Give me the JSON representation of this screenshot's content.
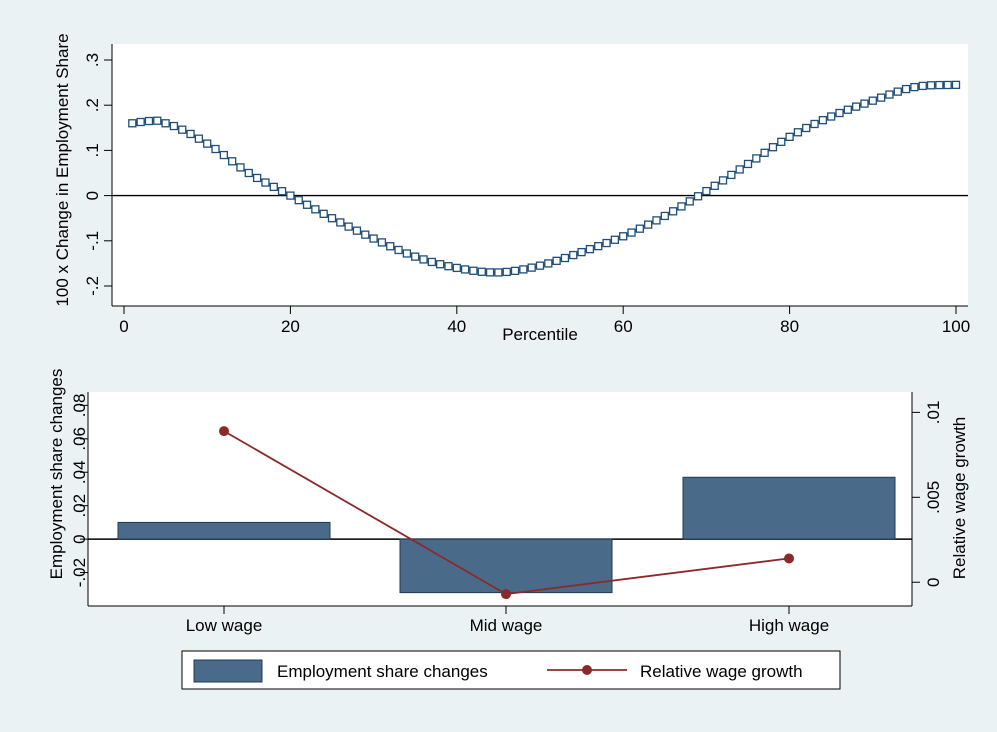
{
  "colors": {
    "outer_bg": "#eaf2f3",
    "plot_bg": "#ffffff",
    "bar_fill": "#4a6a8a",
    "bar_stroke": "#1f3a56",
    "line_color": "#8b2a2a",
    "curve_color": "#1f4e79",
    "zero_line": "#000000"
  },
  "chart_data": [
    {
      "type": "line",
      "marker": "hollow-square",
      "x_start": 1,
      "x_end": 100,
      "x_step": 1,
      "knots": [
        {
          "x": 1,
          "y": 0.16
        },
        {
          "x": 3,
          "y": 0.165
        },
        {
          "x": 5,
          "y": 0.16
        },
        {
          "x": 10,
          "y": 0.115
        },
        {
          "x": 15,
          "y": 0.05
        },
        {
          "x": 20,
          "y": 0.0
        },
        {
          "x": 25,
          "y": -0.05
        },
        {
          "x": 30,
          "y": -0.095
        },
        {
          "x": 35,
          "y": -0.135
        },
        {
          "x": 40,
          "y": -0.16
        },
        {
          "x": 45,
          "y": -0.17
        },
        {
          "x": 50,
          "y": -0.155
        },
        {
          "x": 55,
          "y": -0.125
        },
        {
          "x": 60,
          "y": -0.09
        },
        {
          "x": 65,
          "y": -0.045
        },
        {
          "x": 70,
          "y": 0.01
        },
        {
          "x": 75,
          "y": 0.07
        },
        {
          "x": 80,
          "y": 0.13
        },
        {
          "x": 85,
          "y": 0.175
        },
        {
          "x": 90,
          "y": 0.21
        },
        {
          "x": 95,
          "y": 0.24
        },
        {
          "x": 100,
          "y": 0.245
        }
      ],
      "xlabel": "Percentile",
      "ylabel": "100 x Change in Employment Share",
      "xlim": [
        0,
        100
      ],
      "ylim": [
        -0.2,
        0.3
      ],
      "x_ticks": [
        "0",
        "20",
        "40",
        "60",
        "80",
        "100"
      ],
      "x_tick_values": [
        0,
        20,
        40,
        60,
        80,
        100
      ],
      "y_ticks": [
        "-.2",
        "-.1",
        "0",
        ".1",
        ".2",
        ".3"
      ],
      "y_tick_values": [
        -0.2,
        -0.1,
        0,
        0.1,
        0.2,
        0.3
      ],
      "grid": false,
      "zero_line": true
    },
    {
      "type": "bar",
      "categories": [
        "Low wage",
        "Mid wage",
        "High wage"
      ],
      "series": [
        {
          "name": "Employment share changes",
          "type": "bar",
          "axis": "left",
          "values": [
            0.01,
            -0.032,
            0.037
          ]
        },
        {
          "name": "Relative wage growth",
          "type": "line",
          "axis": "right",
          "values": [
            0.0089,
            -0.0007,
            0.0014
          ]
        }
      ],
      "ylabel_left": "Employment share changes",
      "ylabel_right": "Relative wage growth",
      "ylim_left": [
        -0.04,
        0.088
      ],
      "ylim_right": [
        -0.0014,
        0.0112
      ],
      "y_ticks_left": [
        "-.02",
        "0",
        ".02",
        ".04",
        ".06",
        ".08"
      ],
      "y_tick_values_left": [
        -0.02,
        0,
        0.02,
        0.04,
        0.06,
        0.08
      ],
      "y_ticks_right": [
        "0",
        ".005",
        ".01"
      ],
      "y_tick_values_right": [
        0,
        0.005,
        0.01
      ],
      "grid": false,
      "legend_position": "bottom"
    }
  ]
}
